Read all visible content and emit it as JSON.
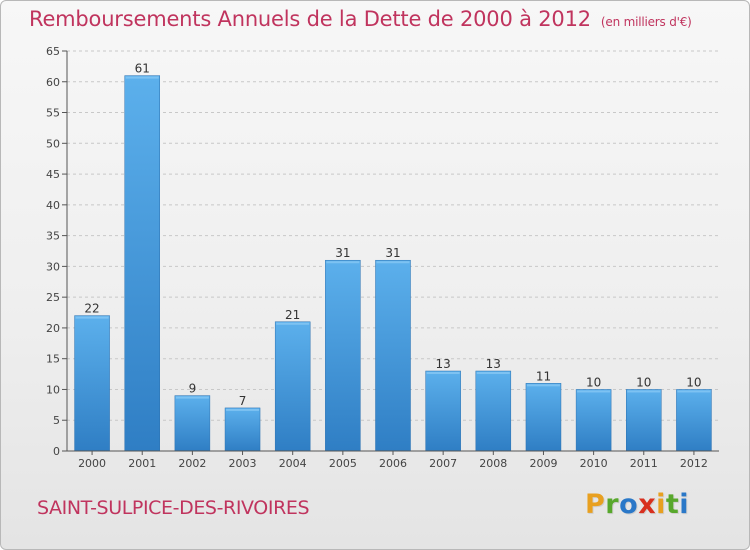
{
  "chart_data": {
    "type": "bar",
    "title": "Remboursements Annuels de la Dette de 2000 à 2012",
    "subtitle": "(en milliers d'€)",
    "categories": [
      "2000",
      "2001",
      "2002",
      "2003",
      "2004",
      "2005",
      "2006",
      "2007",
      "2008",
      "2009",
      "2010",
      "2011",
      "2012"
    ],
    "values": [
      22,
      61,
      9,
      7,
      21,
      31,
      31,
      13,
      13,
      11,
      10,
      10,
      10
    ],
    "ylim": [
      0,
      65
    ],
    "yticks": [
      0,
      5,
      10,
      15,
      20,
      25,
      30,
      35,
      40,
      45,
      50,
      55,
      60,
      65
    ],
    "grid": "horizontal-dashed",
    "bar_color": "#4a9de0"
  },
  "footer": {
    "city": "SAINT-SULPICE-DES-RIVOIRES",
    "logo_letters": [
      "P",
      "r",
      "o",
      "x",
      "i",
      "t",
      "i"
    ],
    "logo_colors": [
      "#e8a020",
      "#58a82c",
      "#2a78c8",
      "#d8301f",
      "#e8a020",
      "#58a82c",
      "#2a78c8"
    ]
  },
  "colors": {
    "title": "#c0345e",
    "axis": "#444444"
  }
}
